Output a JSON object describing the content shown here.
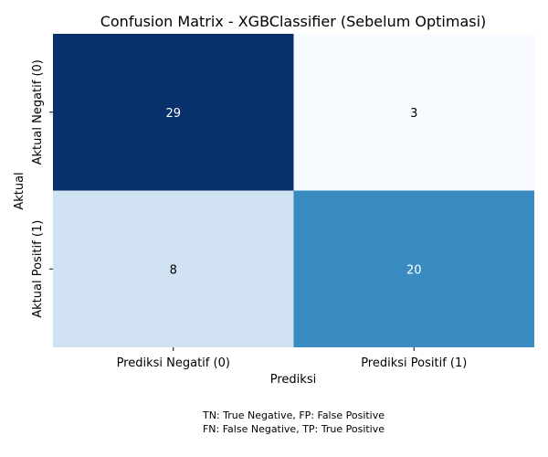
{
  "chart_data": {
    "type": "heatmap",
    "title": "Confusion Matrix - XGBClassifier (Sebelum Optimasi)",
    "xlabel": "Prediksi",
    "ylabel": "Aktual",
    "x_categories": [
      "Prediksi Negatif (0)",
      "Prediksi Positif (1)"
    ],
    "y_categories": [
      "Aktual Negatif (0)",
      "Aktual Positif (1)"
    ],
    "values": [
      [
        29,
        3
      ],
      [
        8,
        20
      ]
    ],
    "colormap": "Blues",
    "colorbar": false,
    "cell_colors": [
      [
        "#08306b",
        "#f7fbff"
      ],
      [
        "#d0e1f2",
        "#3a8bc2"
      ]
    ],
    "text_colors": [
      [
        "#ffffff",
        "#000000"
      ],
      [
        "#000000",
        "#ffffff"
      ]
    ]
  },
  "footnote": {
    "line1": "TN: True Negative, FP: False Positive",
    "line2": "FN: False Negative, TP: True Positive"
  }
}
